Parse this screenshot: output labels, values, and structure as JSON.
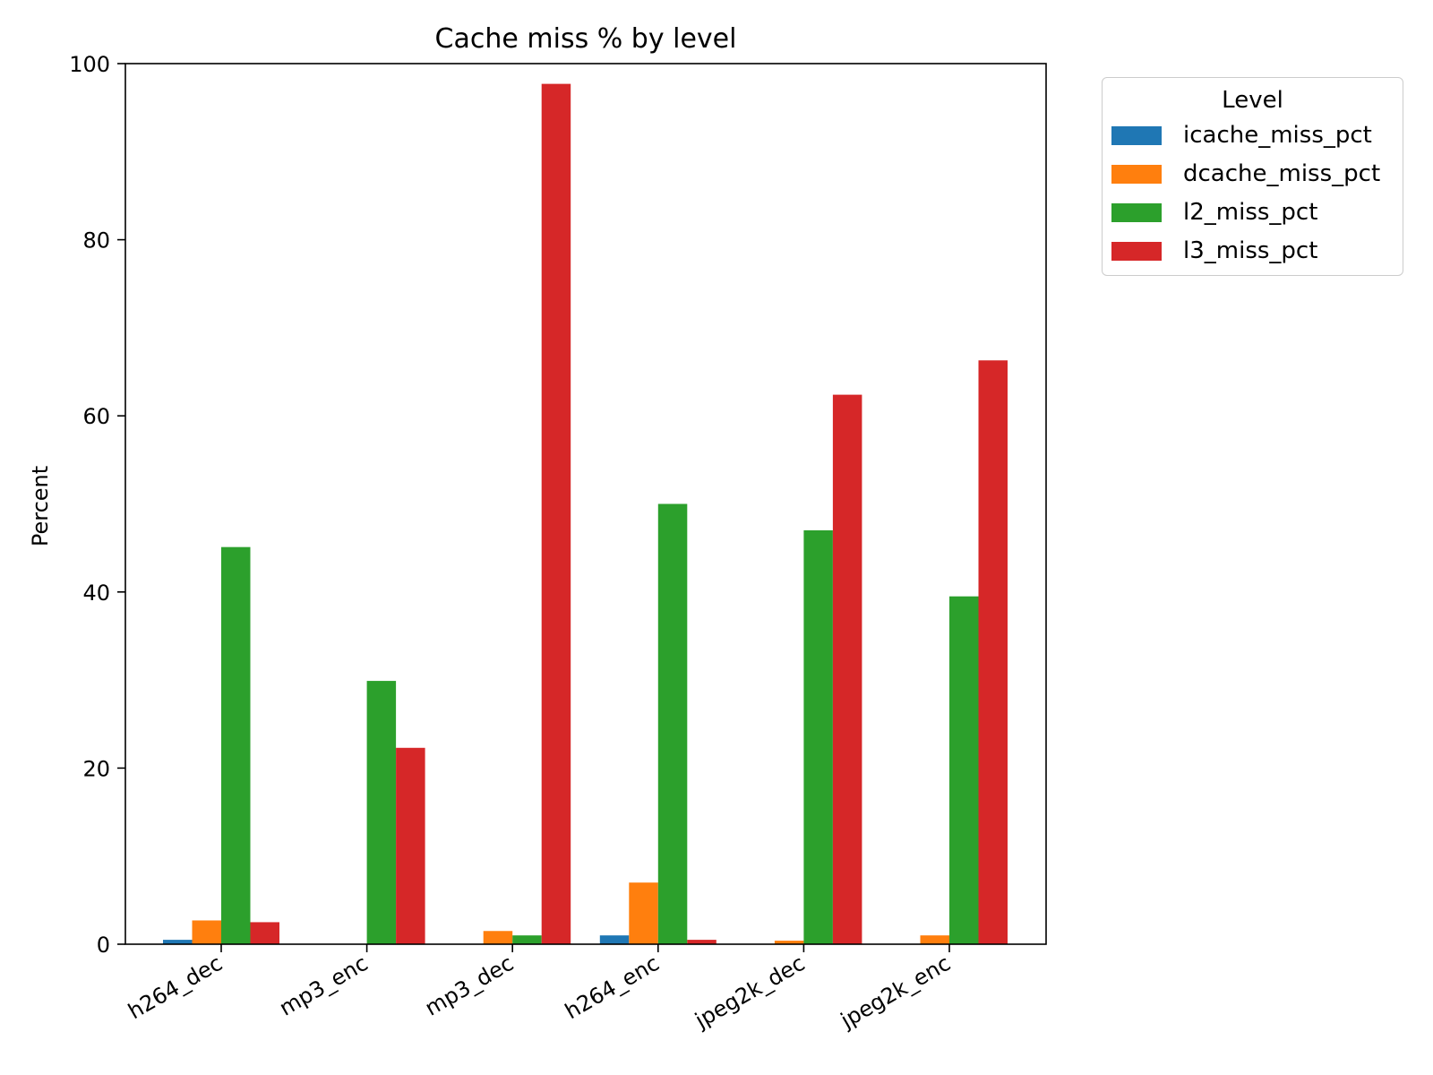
{
  "chart_data": {
    "type": "bar",
    "title": "Cache miss % by level",
    "xlabel": "",
    "ylabel": "Percent",
    "ylim": [
      0,
      100
    ],
    "yticks": [
      "0",
      "20",
      "40",
      "60",
      "80",
      "100"
    ],
    "categories": [
      "h264_dec",
      "mp3_enc",
      "mp3_dec",
      "h264_enc",
      "jpeg2k_dec",
      "jpeg2k_enc"
    ],
    "legend": {
      "title": "Level",
      "placement": "outside-top-right"
    },
    "grid": false,
    "series": [
      {
        "name": "icache_miss_pct",
        "color": "#1f77b4",
        "values": [
          0.5,
          0.0,
          0.0,
          1.0,
          0.0,
          0.0
        ]
      },
      {
        "name": "dcache_miss_pct",
        "color": "#ff7f0e",
        "values": [
          2.7,
          0.0,
          1.5,
          7.0,
          0.4,
          1.0
        ]
      },
      {
        "name": "l2_miss_pct",
        "color": "#2ca02c",
        "values": [
          45.1,
          29.9,
          1.0,
          50.0,
          47.0,
          39.5
        ]
      },
      {
        "name": "l3_miss_pct",
        "color": "#d62728",
        "values": [
          2.5,
          22.3,
          97.7,
          0.5,
          62.4,
          66.3
        ]
      }
    ]
  }
}
